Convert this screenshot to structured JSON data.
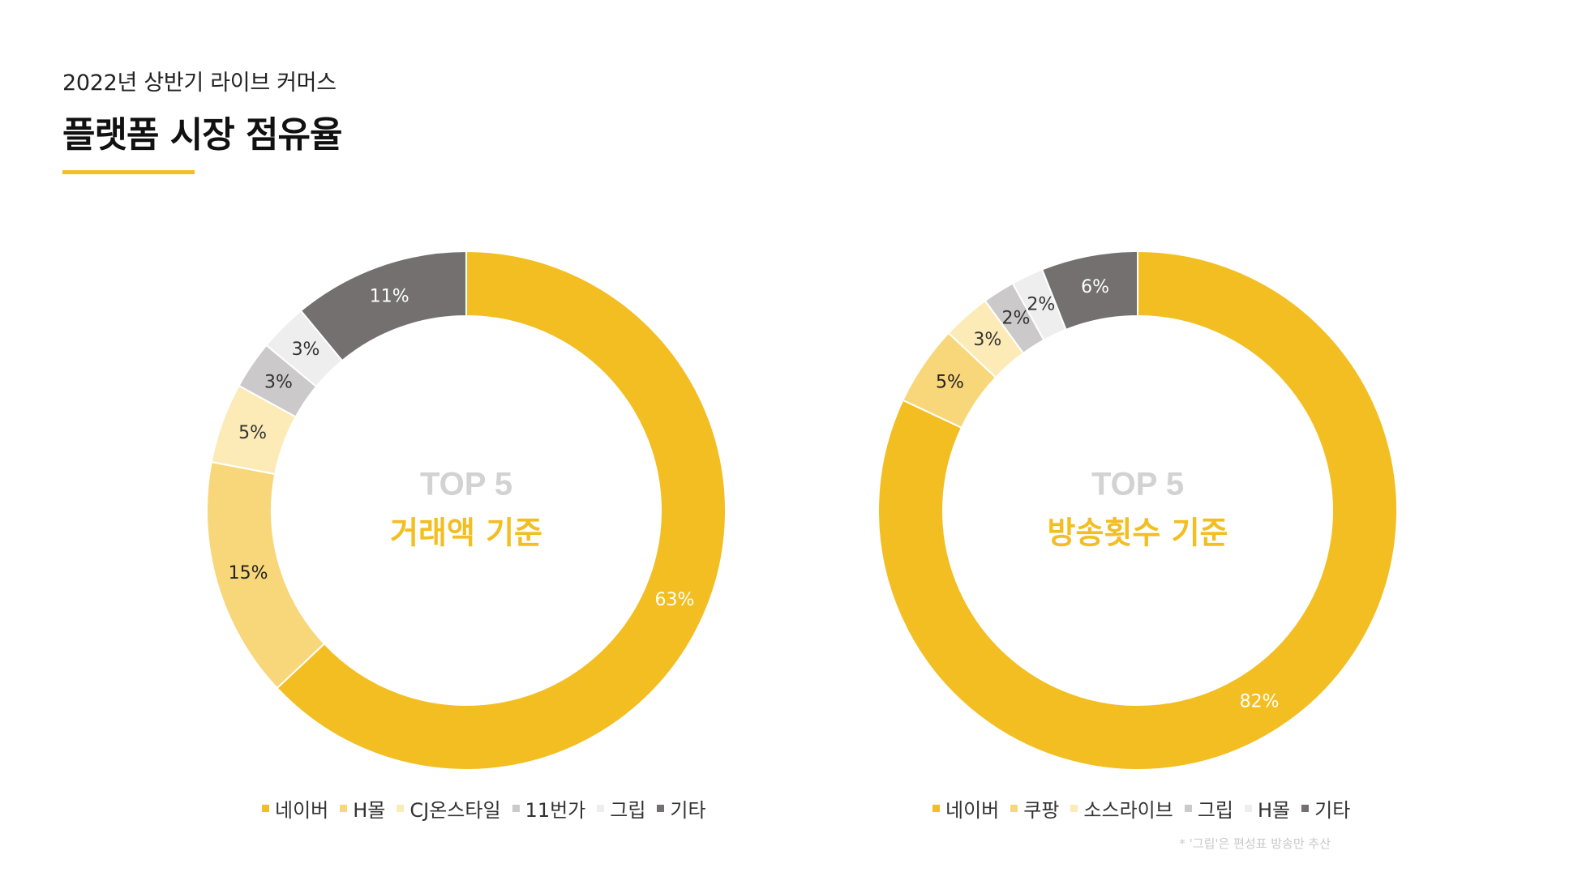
{
  "header": {
    "subtitle": "2022년 상반기 라이브 커머스",
    "title": "플랫폼 시장 점유율",
    "accent_color": "#f3be22"
  },
  "chart_data": [
    {
      "type": "pie",
      "variant": "donut",
      "center_top": "TOP 5",
      "center_label": "거래액 기준",
      "categories": [
        "네이버",
        "H몰",
        "CJ온스타일",
        "11번가",
        "그립",
        "기타"
      ],
      "values": [
        63,
        15,
        5,
        3,
        3,
        11
      ],
      "labels": [
        "63%",
        "15%",
        "5%",
        "3%",
        "3%",
        "11%"
      ],
      "colors": [
        "#f3be22",
        "#f8d77a",
        "#fcebb7",
        "#cbc9c9",
        "#eeeeee",
        "#747070"
      ],
      "label_colors": [
        "#ffffff",
        "#222222",
        "#333333",
        "#333333",
        "#333333",
        "#ffffff"
      ],
      "legend_position": "bottom"
    },
    {
      "type": "pie",
      "variant": "donut",
      "center_top": "TOP 5",
      "center_label": "방송횟수 기준",
      "categories": [
        "네이버",
        "쿠팡",
        "소스라이브",
        "그립",
        "H몰",
        "기타"
      ],
      "values": [
        82,
        5,
        3,
        2,
        2,
        6
      ],
      "labels": [
        "82%",
        "5%",
        "3%",
        "2%",
        "2%",
        "6%"
      ],
      "colors": [
        "#f3be22",
        "#f8d77a",
        "#fcebb7",
        "#cbc9c9",
        "#eeeeee",
        "#747070"
      ],
      "label_colors": [
        "#ffffff",
        "#222222",
        "#333333",
        "#333333",
        "#333333",
        "#ffffff"
      ],
      "legend_position": "bottom"
    }
  ],
  "footnote": "* '그립'은 편성표 방송만 추산"
}
